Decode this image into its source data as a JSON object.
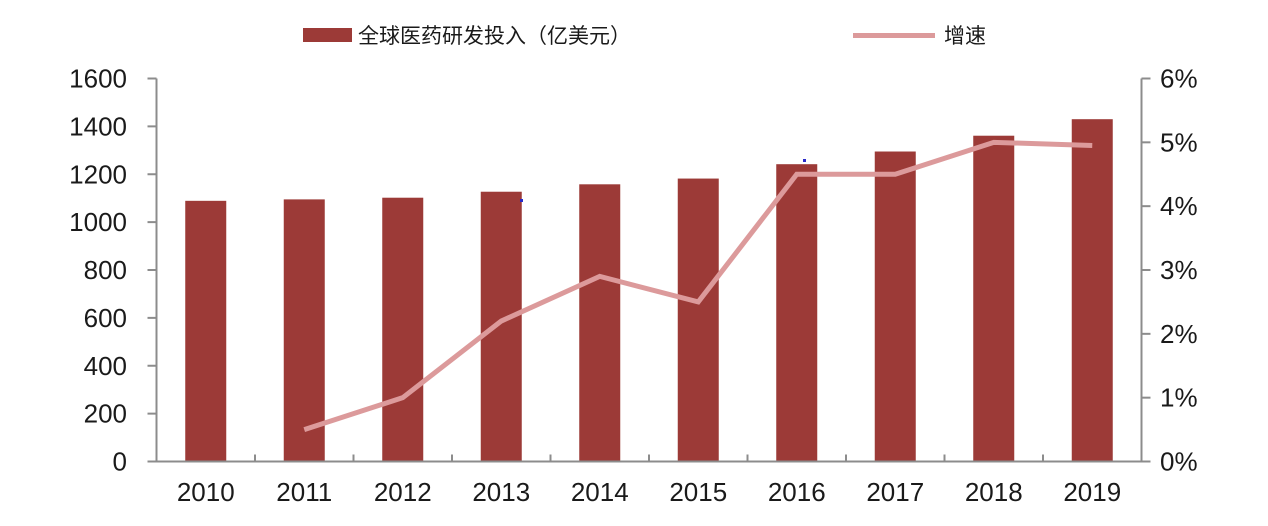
{
  "chart_data": {
    "type": "combo_bar_line",
    "title": "",
    "categories": [
      "2010",
      "2011",
      "2012",
      "2013",
      "2014",
      "2015",
      "2016",
      "2017",
      "2018",
      "2019"
    ],
    "series": [
      {
        "name": "全球医药研发投入（亿美元）",
        "type": "bar",
        "axis": "left",
        "color": "#9C3A37",
        "values": [
          1089,
          1095,
          1102,
          1127,
          1158,
          1182,
          1242,
          1295,
          1361,
          1430
        ]
      },
      {
        "name": "增速",
        "type": "line",
        "axis": "right",
        "color": "#DC9A9B",
        "values": [
          null,
          0.5,
          1.0,
          2.2,
          2.9,
          2.5,
          4.5,
          4.5,
          5.0,
          4.95
        ]
      }
    ],
    "left_axis": {
      "min": 0,
      "max": 1600,
      "step": 200,
      "tick_labels": [
        "0",
        "200",
        "400",
        "600",
        "800",
        "1000",
        "1200",
        "1400",
        "1600"
      ]
    },
    "right_axis": {
      "min": 0,
      "max": 6,
      "step": 1,
      "tick_labels": [
        "0%",
        "1%",
        "2%",
        "3%",
        "4%",
        "5%",
        "6%"
      ]
    },
    "legend": {
      "position": "top"
    },
    "grid": false,
    "axis_color": "#8C8C8C",
    "text_color": "#1a1a1a"
  }
}
